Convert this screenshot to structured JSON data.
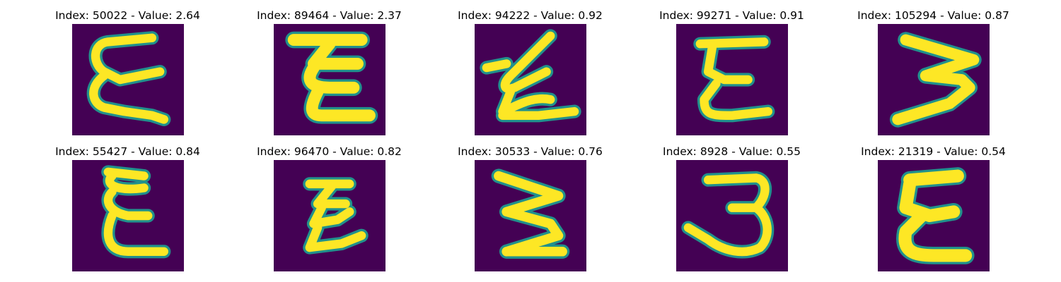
{
  "figure": {
    "colormap": "viridis",
    "colors": {
      "background": "#440154",
      "mid": "#21918c",
      "high": "#fde725"
    },
    "panels": [
      {
        "title": "Index: 50022 - Value: 2.64",
        "index": 50022,
        "value": 2.64,
        "glyph": "epsilon-curly"
      },
      {
        "title": "Index: 89464 - Value: 2.37",
        "index": 89464,
        "value": 2.37,
        "glyph": "epsilon-block"
      },
      {
        "title": "Index: 94222 - Value: 0.92",
        "index": 94222,
        "value": 0.92,
        "glyph": "epsilon-slanted"
      },
      {
        "title": "Index: 99271 - Value: 0.91",
        "index": 99271,
        "value": 0.91,
        "glyph": "epsilon-curly"
      },
      {
        "title": "Index: 105294 - Value: 0.87",
        "index": 105294,
        "value": 0.87,
        "glyph": "three-wide"
      },
      {
        "title": "Index: 55427 - Value: 0.84",
        "index": 55427,
        "value": 0.84,
        "glyph": "epsilon-curly"
      },
      {
        "title": "Index: 96470 - Value: 0.82",
        "index": 96470,
        "value": 0.82,
        "glyph": "epsilon-slanted"
      },
      {
        "title": "Index: 30533 - Value: 0.76",
        "index": 30533,
        "value": 0.76,
        "glyph": "three-wide"
      },
      {
        "title": "Index: 8928 - Value: 0.55",
        "index": 8928,
        "value": 0.55,
        "glyph": "three-open"
      },
      {
        "title": "Index: 21319 - Value: 0.54",
        "index": 21319,
        "value": 0.54,
        "glyph": "epsilon-block"
      }
    ]
  }
}
